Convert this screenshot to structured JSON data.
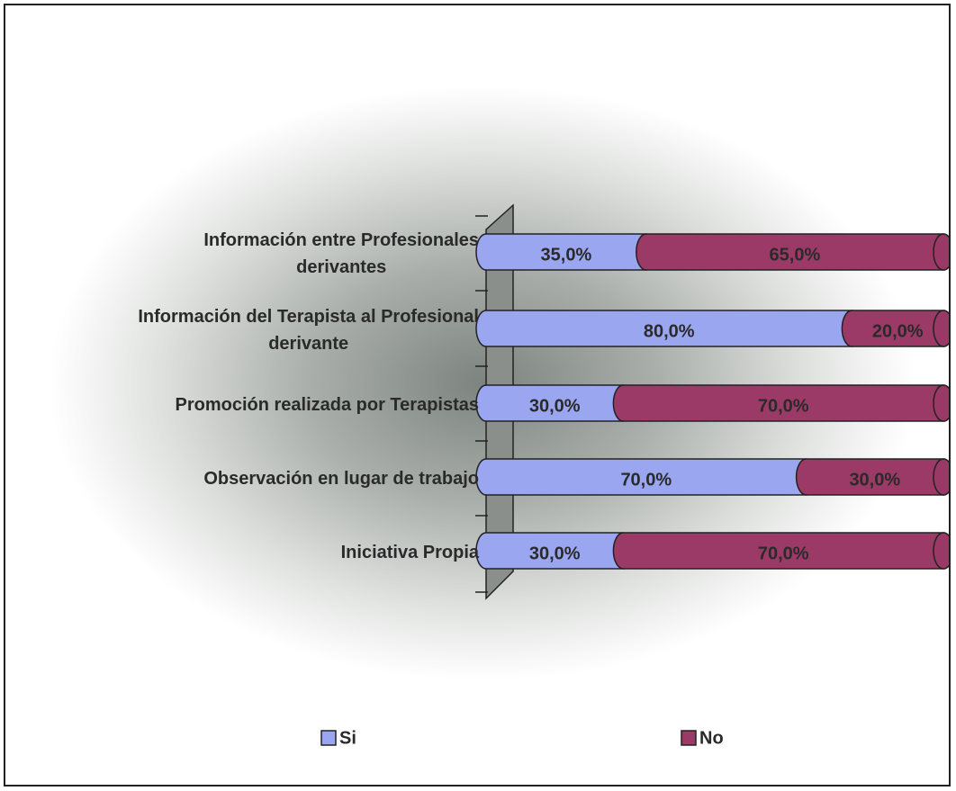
{
  "chart_data": {
    "type": "stacked-bar-horizontal",
    "categories": [
      "Información entre Profesionales\nderivantes",
      "Información del Terapista al Profesional\nderivante",
      "Promoción realizada por Terapistas",
      "Observación en lugar de trabajo",
      "Iniciativa Propia"
    ],
    "series": [
      {
        "name": "Si",
        "color": "#9aa6f0",
        "values": [
          35,
          80,
          30,
          70,
          30
        ],
        "value_labels": [
          "35,0%",
          "80,0%",
          "30,0%",
          "70,0%",
          "30,0%"
        ]
      },
      {
        "name": "No",
        "color": "#9b3a66",
        "values": [
          65,
          20,
          70,
          30,
          70
        ],
        "value_labels": [
          "65,0%",
          "20,0%",
          "70,0%",
          "30,0%",
          "70,0%"
        ]
      }
    ],
    "xlim": [
      0,
      100
    ]
  }
}
